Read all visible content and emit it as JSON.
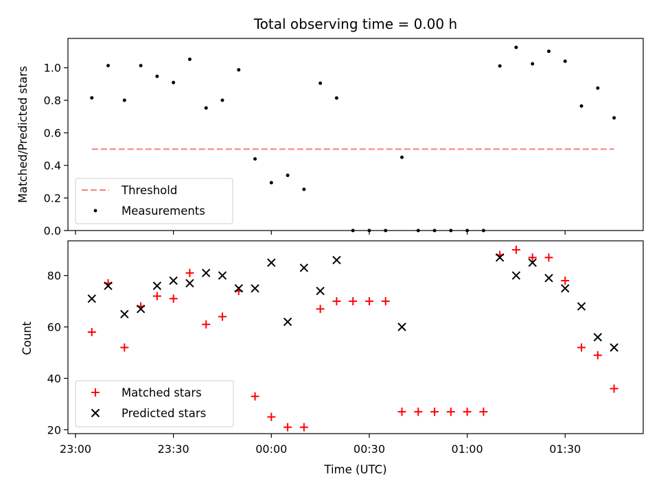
{
  "chart_data": [
    {
      "type": "scatter",
      "title": "Total observing time = 0.00 h",
      "xlabel": "",
      "ylabel": "Matched/Predicted stars",
      "ylim": [
        0,
        1.18
      ],
      "yticks": [
        "0.0",
        "0.2",
        "0.4",
        "0.6",
        "0.8",
        "1.0"
      ],
      "xticks": [
        "23:00",
        "23:30",
        "00:00",
        "00:30",
        "01:00",
        "01:30"
      ],
      "legend": {
        "position": "lower-left",
        "entries": [
          "Threshold",
          "Measurements"
        ]
      },
      "threshold": {
        "name": "Threshold",
        "value": 0.5,
        "x_start": "23:05",
        "x_end": "01:45",
        "color": "#f08080"
      },
      "measurements": {
        "name": "Measurements",
        "color": "#000000",
        "x": [
          "23:05",
          "23:10",
          "23:15",
          "23:20",
          "23:25",
          "23:30",
          "23:35",
          "23:40",
          "23:45",
          "23:50",
          "23:55",
          "00:00",
          "00:05",
          "00:10",
          "00:15",
          "00:20",
          "00:25",
          "00:30",
          "00:35",
          "00:40",
          "00:45",
          "00:50",
          "00:55",
          "01:00",
          "01:05",
          "01:10",
          "01:15",
          "01:20",
          "01:25",
          "01:30",
          "01:35",
          "01:40",
          "01:45"
        ],
        "y": [
          0.815,
          1.013,
          0.8,
          1.013,
          0.947,
          0.909,
          1.052,
          0.753,
          0.8,
          0.987,
          0.44,
          0.294,
          0.339,
          0.253,
          0.905,
          0.814,
          0,
          0,
          0,
          0.45,
          0,
          0,
          0,
          0,
          0,
          1.011,
          1.125,
          1.024,
          1.101,
          1.04,
          0.765,
          0.875,
          0.692
        ]
      }
    },
    {
      "type": "scatter",
      "title": "",
      "xlabel": "Time (UTC)",
      "ylabel": "Count",
      "ylim": [
        18.5,
        93.5
      ],
      "yticks": [
        "20",
        "40",
        "60",
        "80"
      ],
      "xticks": [
        "23:00",
        "23:30",
        "00:00",
        "00:30",
        "01:00",
        "01:30"
      ],
      "legend": {
        "position": "lower-left",
        "entries": [
          "Matched stars",
          "Predicted stars"
        ]
      },
      "series": [
        {
          "name": "Matched stars",
          "marker": "plus",
          "color": "#ff0000",
          "x": [
            "23:05",
            "23:10",
            "23:15",
            "23:20",
            "23:25",
            "23:30",
            "23:35",
            "23:40",
            "23:45",
            "23:50",
            "23:55",
            "00:00",
            "00:05",
            "00:10",
            "00:15",
            "00:20",
            "00:25",
            "00:30",
            "00:35",
            "00:40",
            "00:45",
            "00:50",
            "00:55",
            "01:00",
            "01:05",
            "01:10",
            "01:15",
            "01:20",
            "01:25",
            "01:30",
            "01:35",
            "01:40",
            "01:45"
          ],
          "y": [
            58,
            77,
            52,
            68,
            72,
            71,
            81,
            61,
            64,
            74,
            33,
            25,
            21,
            21,
            67,
            70,
            70,
            70,
            70,
            27,
            27,
            27,
            27,
            27,
            27,
            88,
            90,
            87,
            87,
            78,
            52,
            49,
            36
          ]
        },
        {
          "name": "Predicted stars",
          "marker": "x",
          "color": "#000000",
          "x": [
            "23:05",
            "23:10",
            "23:15",
            "23:20",
            "23:25",
            "23:30",
            "23:35",
            "23:40",
            "23:45",
            "23:50",
            "23:55",
            "00:00",
            "00:05",
            "00:10",
            "00:15",
            "00:20",
            "00:40",
            "01:10",
            "01:15",
            "01:20",
            "01:25",
            "01:30",
            "01:35",
            "01:40",
            "01:45"
          ],
          "y": [
            71,
            76,
            65,
            67,
            76,
            78,
            77,
            81,
            80,
            75,
            75,
            85,
            62,
            83,
            74,
            86,
            60,
            87,
            80,
            85,
            79,
            75,
            68,
            56,
            52
          ]
        }
      ]
    }
  ]
}
